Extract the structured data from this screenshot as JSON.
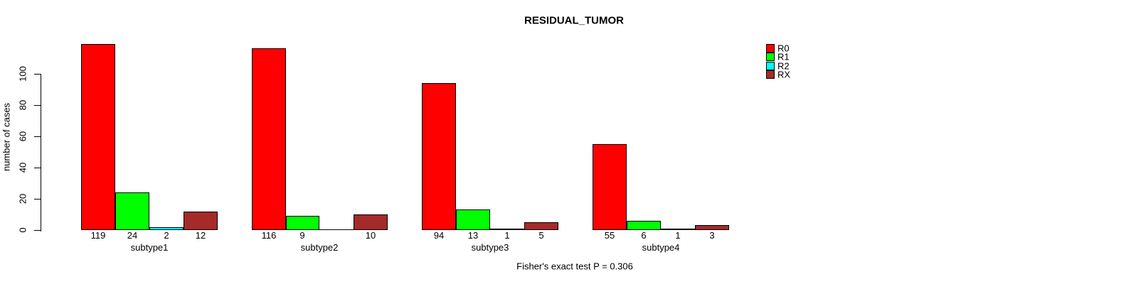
{
  "chart_data": {
    "type": "bar",
    "title": "RESIDUAL_TUMOR",
    "xlabel": "",
    "ylabel": "number of cases",
    "categories": [
      "subtype1",
      "subtype2",
      "subtype3",
      "subtype4"
    ],
    "series": [
      {
        "name": "R0",
        "color": "#FF0000",
        "values": [
          119,
          116,
          94,
          55
        ]
      },
      {
        "name": "R1",
        "color": "#00FF00",
        "values": [
          24,
          9,
          13,
          6
        ]
      },
      {
        "name": "R2",
        "color": "#00FFFF",
        "values": [
          2,
          0,
          1,
          1
        ]
      },
      {
        "name": "RX",
        "color": "#A52A2A",
        "values": [
          12,
          10,
          5,
          3
        ]
      }
    ],
    "bar_value_labels": [
      [
        "119",
        "24",
        "2",
        "12"
      ],
      [
        "116",
        "9",
        "",
        "10"
      ],
      [
        "94",
        "13",
        "1",
        "5"
      ],
      [
        "55",
        "6",
        "1",
        "3"
      ]
    ],
    "y_ticks": [
      0,
      20,
      40,
      60,
      80,
      100
    ],
    "axis_range": [
      0,
      100
    ],
    "grid": false,
    "legend_position": "top-right",
    "bar_border_color": "#000000",
    "annotation": "Fisher's exact test P = 0.306"
  }
}
